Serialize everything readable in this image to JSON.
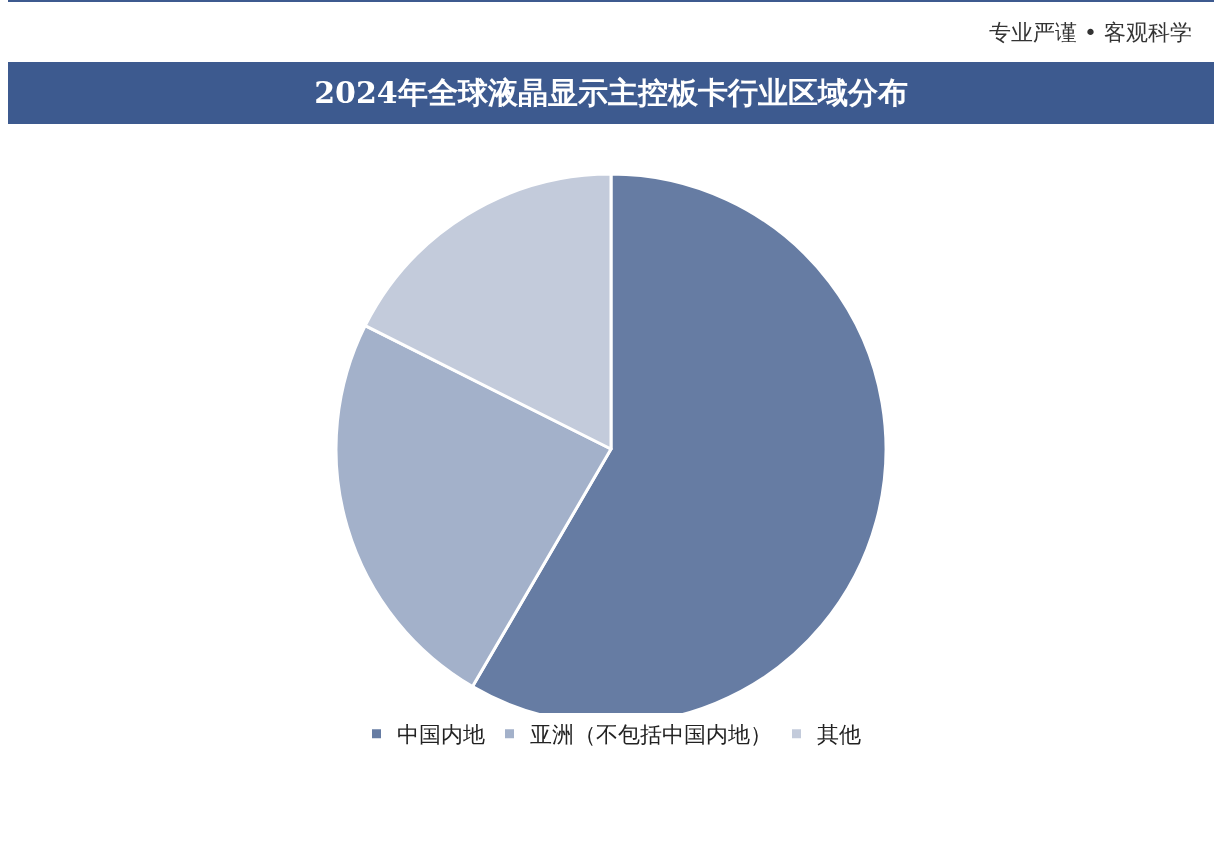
{
  "chart_data": {
    "type": "pie",
    "title": "2024年全球液晶显示主控板卡行业区域分布",
    "annotations": [
      "专业严谨 • 客观科学"
    ],
    "categories": [
      "中国内地",
      "亚洲（不包括中国内地）",
      "其他"
    ],
    "values": [
      58.4,
      24.0,
      17.6
    ],
    "colors": [
      "#667ca3",
      "#a3b1ca",
      "#c3cbdb"
    ],
    "legend": "bottom"
  }
}
